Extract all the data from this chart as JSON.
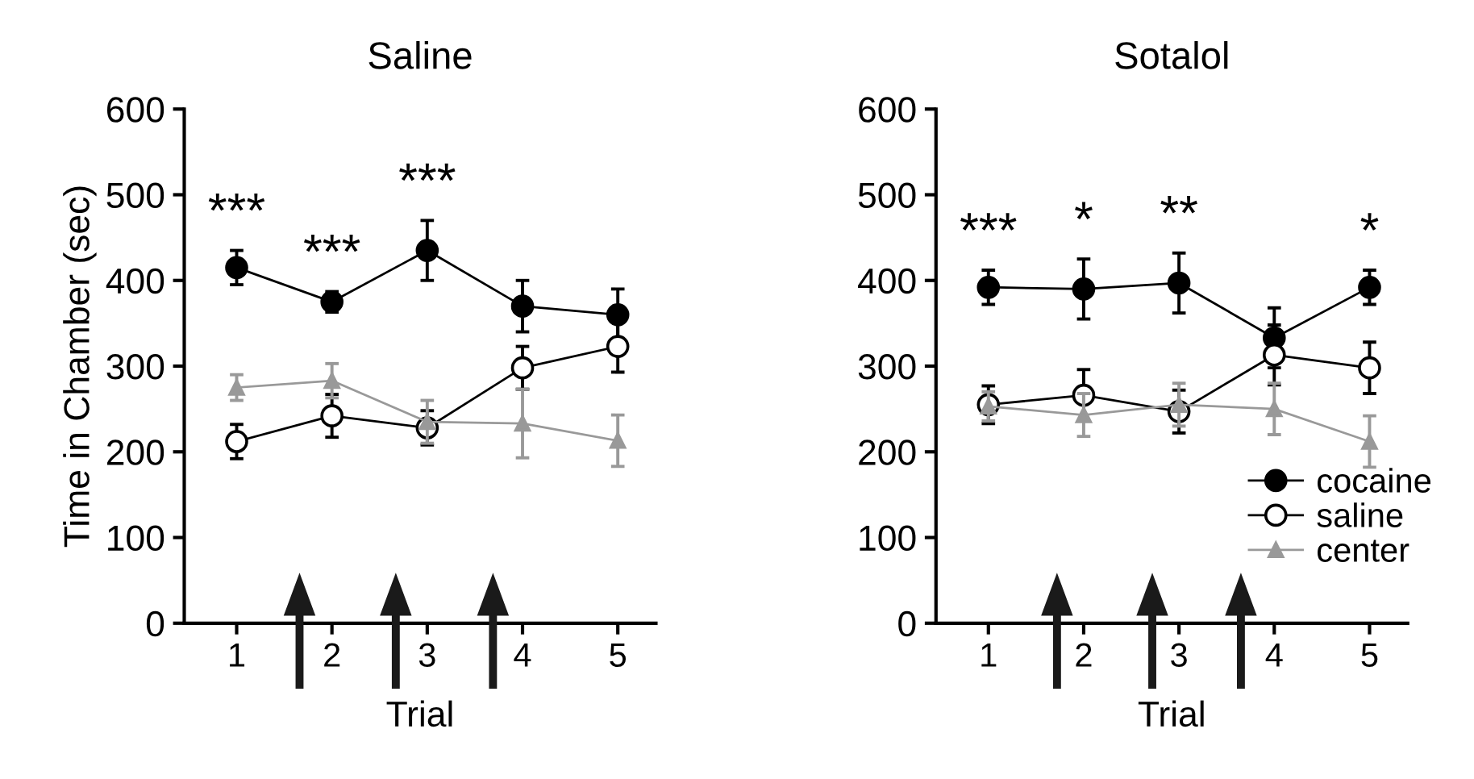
{
  "chart_data": [
    {
      "type": "line",
      "title": "Saline",
      "xlabel": "Trial",
      "ylabel": "Time in Chamber (sec)",
      "categories": [
        "1",
        "2",
        "3",
        "4",
        "5"
      ],
      "ylim": [
        0,
        600
      ],
      "yticks": [
        0,
        100,
        200,
        300,
        400,
        500,
        600
      ],
      "grid": false,
      "legend": false,
      "series": [
        {
          "color": "#000000",
          "marker": "circle",
          "values": [
            415,
            375,
            435,
            370,
            360
          ],
          "errors": [
            20,
            12,
            35,
            30,
            30
          ],
          "value_labels": [
            "***",
            "***",
            "***",
            null,
            null
          ]
        },
        {
          "color": "#000000",
          "marker": "circle",
          "values": [
            212,
            242,
            228,
            298,
            323
          ],
          "errors": [
            20,
            25,
            20,
            25,
            30
          ]
        },
        {
          "color": "#999999",
          "marker": "triangle",
          "values": [
            275,
            283,
            235,
            233,
            213
          ],
          "errors": [
            15,
            20,
            25,
            40,
            30
          ]
        }
      ]
    },
    {
      "type": "line",
      "title": "Sotalol",
      "xlabel": "Trial",
      "categories": [
        "1",
        "2",
        "3",
        "4",
        "5"
      ],
      "ylim": [
        0,
        600
      ],
      "yticks": [
        0,
        100,
        200,
        300,
        400,
        500,
        600
      ],
      "grid": false,
      "legend": "bottom right",
      "series": [
        {
          "name": "cocaine",
          "color": "#000000",
          "marker": "circle",
          "values": [
            392,
            390,
            397,
            333,
            392
          ],
          "errors": [
            20,
            35,
            35,
            35,
            20
          ],
          "value_labels": [
            "***",
            "*",
            "**",
            null,
            "*"
          ]
        },
        {
          "name": "saline",
          "color": "#000000",
          "marker": "circle",
          "values": [
            255,
            266,
            247,
            313,
            298
          ],
          "errors": [
            22,
            30,
            25,
            35,
            30
          ]
        },
        {
          "name": "center",
          "color": "#999999",
          "marker": "triangle",
          "values": [
            253,
            243,
            255,
            250,
            212
          ],
          "errors": [
            17,
            25,
            25,
            30,
            30
          ]
        }
      ]
    }
  ]
}
